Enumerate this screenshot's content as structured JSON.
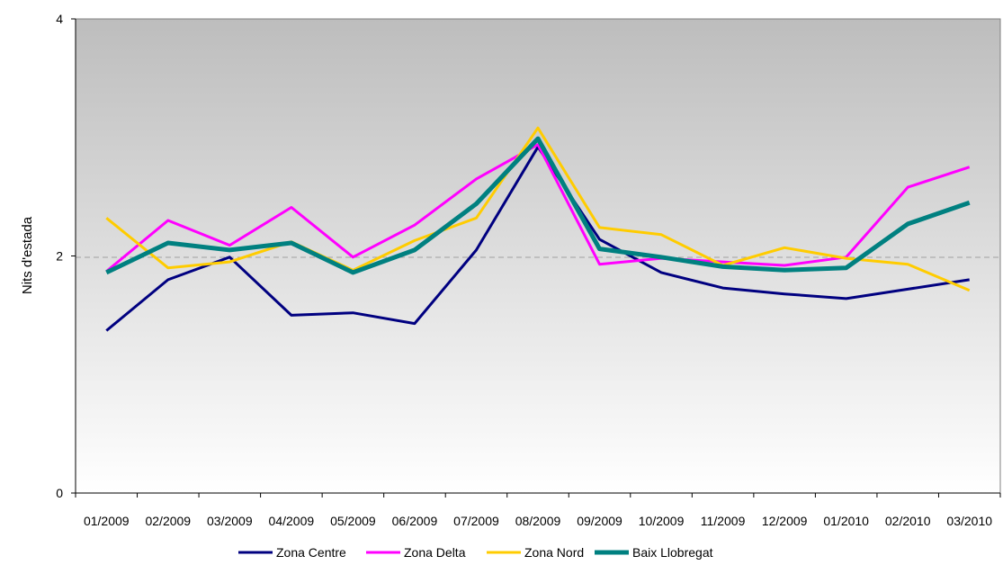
{
  "chart_data": {
    "type": "line",
    "title": "",
    "xlabel": "",
    "ylabel": "Nits d'estada",
    "ylim": [
      0,
      4
    ],
    "yticks": [
      0,
      2,
      4
    ],
    "grid": "dashed horizontal line at 2",
    "legend_position": "bottom",
    "background": "vertical gradient grey to white",
    "categories": [
      "01/2009",
      "02/2009",
      "03/2009",
      "04/2009",
      "05/2009",
      "06/2009",
      "07/2009",
      "08/2009",
      "09/2009",
      "10/2009",
      "11/2009",
      "12/2009",
      "01/2010",
      "02/2010",
      "03/2010"
    ],
    "series": [
      {
        "name": "Zona Centre",
        "color": "#000080",
        "values": [
          1.37,
          1.8,
          1.99,
          1.5,
          1.52,
          1.43,
          2.05,
          2.92,
          2.14,
          1.86,
          1.73,
          1.68,
          1.64,
          1.72,
          1.8
        ]
      },
      {
        "name": "Zona Delta",
        "color": "#ff00ff",
        "values": [
          1.87,
          2.3,
          2.09,
          2.41,
          1.99,
          2.26,
          2.65,
          2.94,
          1.93,
          1.98,
          1.95,
          1.92,
          1.99,
          2.58,
          2.75
        ]
      },
      {
        "name": "Zona Nord",
        "color": "#ffcc00",
        "values": [
          2.32,
          1.9,
          1.95,
          2.12,
          1.88,
          2.13,
          2.32,
          3.08,
          2.24,
          2.18,
          1.92,
          2.07,
          1.98,
          1.93,
          1.71
        ]
      },
      {
        "name": "Baix Llobregat",
        "color": "#008080",
        "values": [
          1.86,
          2.11,
          2.05,
          2.11,
          1.86,
          2.05,
          2.44,
          2.99,
          2.06,
          1.99,
          1.91,
          1.88,
          1.9,
          2.27,
          2.45
        ]
      }
    ]
  }
}
